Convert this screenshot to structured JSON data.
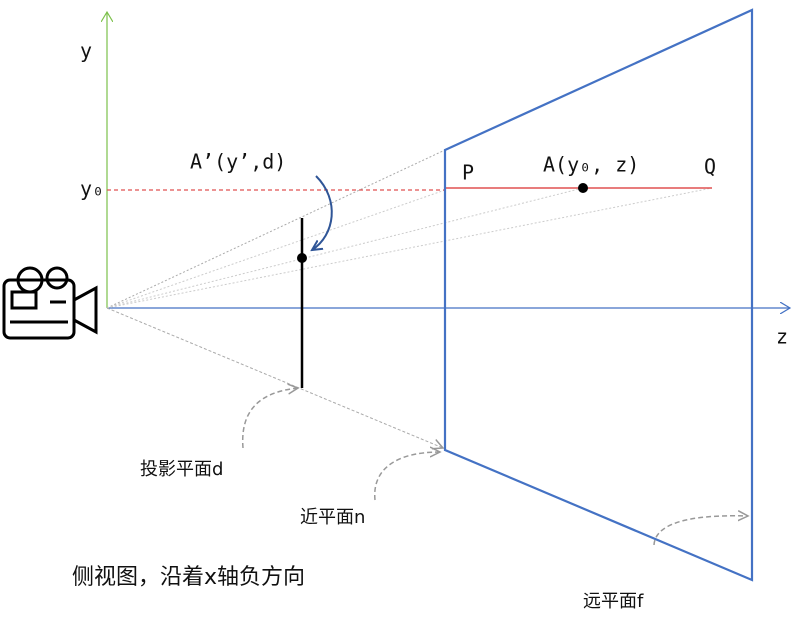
{
  "axes": {
    "y": "y",
    "z": "z",
    "y0": "y₀"
  },
  "points": {
    "a_prime": "A’(y’,d)",
    "p": "P",
    "a": "A(y₀, z)",
    "q": "Q"
  },
  "planes": {
    "projection": "投影平面d",
    "near": "近平面n",
    "far": "远平面f"
  },
  "caption": "侧视图，沿着x轴负方向"
}
